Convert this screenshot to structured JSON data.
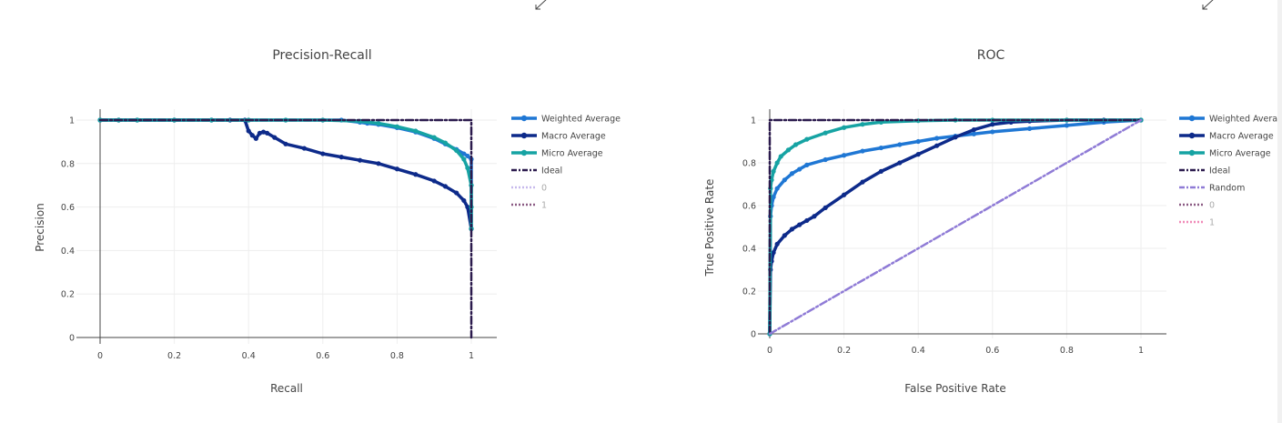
{
  "chart_data": [
    {
      "type": "line",
      "title": "Precision-Recall",
      "xlabel": "Recall",
      "ylabel": "Precision",
      "xlim": [
        0,
        1
      ],
      "ylim": [
        0,
        1
      ],
      "xticks": [
        0,
        0.2,
        0.4,
        0.6,
        0.8,
        1
      ],
      "yticks": [
        0,
        0.2,
        0.4,
        0.6,
        0.8,
        1
      ],
      "xtick_labels": [
        "0",
        "0.2",
        "0.4",
        "0.6",
        "0.8",
        "1"
      ],
      "ytick_labels": [
        "0",
        "0.2",
        "0.4",
        "0.6",
        "0.8",
        "1"
      ],
      "grid": true,
      "legend_position": "right",
      "series": [
        {
          "name": "Weighted Average",
          "color": "#1f77d4",
          "style": "solid-markers",
          "x": [
            0,
            0.05,
            0.1,
            0.2,
            0.3,
            0.4,
            0.5,
            0.6,
            0.65,
            0.7,
            0.72,
            0.75,
            0.8,
            0.85,
            0.9,
            0.93,
            0.96,
            0.98,
            0.99,
            1.0,
            1.0,
            1.0
          ],
          "y": [
            1.0,
            1.0,
            1.0,
            1.0,
            1.0,
            1.0,
            1.0,
            1.0,
            1.0,
            0.99,
            0.985,
            0.98,
            0.965,
            0.945,
            0.915,
            0.89,
            0.865,
            0.845,
            0.835,
            0.82,
            0.7,
            0.5
          ]
        },
        {
          "name": "Macro Average",
          "color": "#0d2a8a",
          "style": "solid-markers",
          "x": [
            0,
            0.05,
            0.1,
            0.2,
            0.3,
            0.35,
            0.39,
            0.4,
            0.41,
            0.42,
            0.43,
            0.44,
            0.45,
            0.47,
            0.5,
            0.55,
            0.6,
            0.65,
            0.7,
            0.75,
            0.8,
            0.85,
            0.9,
            0.93,
            0.96,
            0.98,
            0.99,
            1.0
          ],
          "y": [
            1.0,
            1.0,
            1.0,
            1.0,
            1.0,
            1.0,
            1.0,
            0.95,
            0.93,
            0.915,
            0.94,
            0.945,
            0.94,
            0.92,
            0.89,
            0.87,
            0.845,
            0.83,
            0.815,
            0.8,
            0.775,
            0.75,
            0.72,
            0.695,
            0.665,
            0.63,
            0.6,
            0.5
          ]
        },
        {
          "name": "Micro Average",
          "color": "#16a3a3",
          "style": "solid-markers",
          "x": [
            0,
            0.05,
            0.1,
            0.2,
            0.3,
            0.4,
            0.5,
            0.6,
            0.7,
            0.75,
            0.8,
            0.85,
            0.9,
            0.93,
            0.96,
            0.98,
            0.99,
            1.0,
            1.0,
            1.0
          ],
          "y": [
            1.0,
            1.0,
            1.0,
            1.0,
            1.0,
            1.0,
            1.0,
            1.0,
            0.995,
            0.985,
            0.97,
            0.95,
            0.92,
            0.895,
            0.86,
            0.82,
            0.78,
            0.7,
            0.6,
            0.5
          ]
        },
        {
          "name": "Ideal",
          "color": "#2b1a4d",
          "style": "dashdot",
          "x": [
            0,
            1,
            1
          ],
          "y": [
            1,
            1,
            0
          ]
        },
        {
          "name": "0",
          "color": "#c7b9ec",
          "style": "dotted",
          "muted": true,
          "x": [],
          "y": []
        },
        {
          "name": "1",
          "color": "#8a5a83",
          "style": "dotted",
          "muted": true,
          "x": [],
          "y": []
        }
      ]
    },
    {
      "type": "line",
      "title": "ROC",
      "xlabel": "False Positive Rate",
      "ylabel": "True Positive Rate",
      "xlim": [
        0,
        1
      ],
      "ylim": [
        0,
        1
      ],
      "xticks": [
        0,
        0.2,
        0.4,
        0.6,
        0.8,
        1
      ],
      "yticks": [
        0,
        0.2,
        0.4,
        0.6,
        0.8,
        1
      ],
      "xtick_labels": [
        "0",
        "0.2",
        "0.4",
        "0.6",
        "0.8",
        "1"
      ],
      "ytick_labels": [
        "0",
        "0.2",
        "0.4",
        "0.6",
        "0.8",
        "1"
      ],
      "grid": true,
      "legend_position": "right",
      "series": [
        {
          "name": "Weighted Average",
          "color": "#1f77d4",
          "style": "solid-markers",
          "x": [
            0,
            0.002,
            0.005,
            0.01,
            0.02,
            0.04,
            0.06,
            0.08,
            0.1,
            0.15,
            0.2,
            0.25,
            0.3,
            0.35,
            0.4,
            0.45,
            0.5,
            0.55,
            0.6,
            0.7,
            0.8,
            0.9,
            1.0
          ],
          "y": [
            0,
            0.55,
            0.6,
            0.64,
            0.68,
            0.72,
            0.75,
            0.77,
            0.79,
            0.815,
            0.835,
            0.855,
            0.87,
            0.885,
            0.9,
            0.915,
            0.925,
            0.935,
            0.945,
            0.96,
            0.975,
            0.99,
            1.0
          ]
        },
        {
          "name": "Macro Average",
          "color": "#0d2a8a",
          "style": "solid-markers",
          "x": [
            0,
            0.002,
            0.005,
            0.01,
            0.02,
            0.04,
            0.06,
            0.08,
            0.1,
            0.12,
            0.15,
            0.2,
            0.25,
            0.3,
            0.35,
            0.4,
            0.45,
            0.5,
            0.55,
            0.6,
            0.65,
            0.7,
            0.8,
            0.9,
            1.0
          ],
          "y": [
            0,
            0.3,
            0.34,
            0.38,
            0.42,
            0.46,
            0.49,
            0.51,
            0.53,
            0.55,
            0.59,
            0.65,
            0.71,
            0.76,
            0.8,
            0.84,
            0.88,
            0.92,
            0.955,
            0.98,
            0.99,
            0.995,
            1.0,
            1.0,
            1.0
          ]
        },
        {
          "name": "Micro Average",
          "color": "#16a3a3",
          "style": "solid-markers",
          "x": [
            0,
            0.002,
            0.005,
            0.01,
            0.02,
            0.03,
            0.05,
            0.07,
            0.1,
            0.15,
            0.2,
            0.25,
            0.3,
            0.4,
            0.5,
            0.6,
            0.8,
            1.0
          ],
          "y": [
            0,
            0.68,
            0.72,
            0.76,
            0.8,
            0.83,
            0.86,
            0.885,
            0.91,
            0.94,
            0.965,
            0.98,
            0.99,
            0.997,
            1.0,
            1.0,
            1.0,
            1.0
          ]
        },
        {
          "name": "Ideal",
          "color": "#2b1a4d",
          "style": "dashdot",
          "x": [
            0,
            0,
            1
          ],
          "y": [
            0,
            1,
            1
          ]
        },
        {
          "name": "Random",
          "color": "#8f7bd6",
          "style": "dashdot",
          "x": [
            0,
            1
          ],
          "y": [
            0,
            1
          ]
        },
        {
          "name": "0",
          "color": "#8a5a83",
          "style": "dotted",
          "muted": true,
          "x": [],
          "y": []
        },
        {
          "name": "1",
          "color": "#f08ab8",
          "style": "dotted",
          "muted": true,
          "x": [],
          "y": []
        }
      ]
    }
  ]
}
